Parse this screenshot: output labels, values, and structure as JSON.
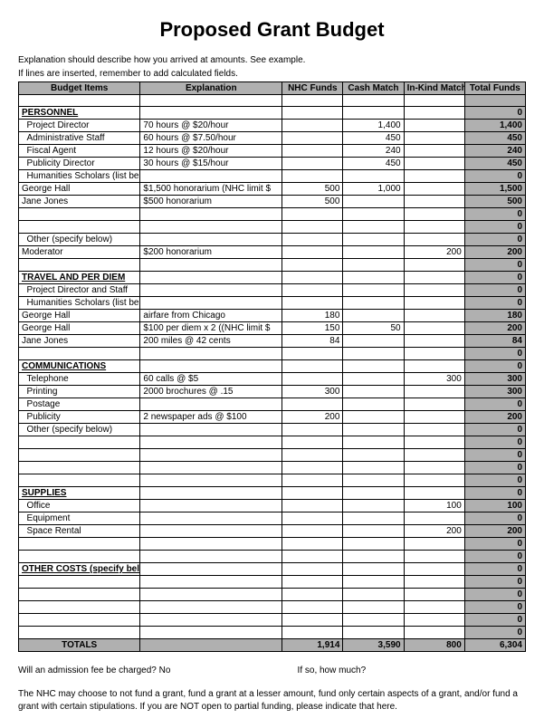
{
  "title": "Proposed Grant Budget",
  "intro_line1": "Explanation should describe how you arrived at amounts.  See example.",
  "intro_line2": "If lines are inserted, remember to add calculated fields.",
  "headers": {
    "item": "Budget Items",
    "expl": "Explanation",
    "nhc": "NHC Funds",
    "cash": "Cash Match",
    "inkind": "In-Kind Match",
    "total": "Total Funds"
  },
  "rows": [
    {
      "item": "",
      "expl": "",
      "nhc": "",
      "cash": "",
      "inkind": "",
      "total": ""
    },
    {
      "section": true,
      "item": "PERSONNEL",
      "expl": "",
      "nhc": "",
      "cash": "",
      "inkind": "",
      "total": "0"
    },
    {
      "item": "  Project Director",
      "expl": "70 hours @ $20/hour",
      "nhc": "",
      "cash": "1,400",
      "inkind": "",
      "total": "1,400"
    },
    {
      "item": "  Administrative Staff",
      "expl": "60 hours @ $7.50/hour",
      "nhc": "",
      "cash": "450",
      "inkind": "",
      "total": "450"
    },
    {
      "item": "  Fiscal Agent",
      "expl": "12 hours @ $20/hour",
      "nhc": "",
      "cash": "240",
      "inkind": "",
      "total": "240"
    },
    {
      "item": "  Publicity Director",
      "expl": "30 hours @ $15/hour",
      "nhc": "",
      "cash": "450",
      "inkind": "",
      "total": "450"
    },
    {
      "item": "  Humanities Scholars (list below)",
      "expl": "",
      "nhc": "",
      "cash": "",
      "inkind": "",
      "total": "0"
    },
    {
      "item": "George Hall",
      "expl": "$1,500 honorarium (NHC limit $",
      "nhc": "500",
      "cash": "1,000",
      "inkind": "",
      "total": "1,500"
    },
    {
      "item": "Jane Jones",
      "expl": "$500 honorarium",
      "nhc": "500",
      "cash": "",
      "inkind": "",
      "total": "500"
    },
    {
      "item": "",
      "expl": "",
      "nhc": "",
      "cash": "",
      "inkind": "",
      "total": "0"
    },
    {
      "item": "",
      "expl": "",
      "nhc": "",
      "cash": "",
      "inkind": "",
      "total": "0"
    },
    {
      "item": "  Other (specify below)",
      "expl": "",
      "nhc": "",
      "cash": "",
      "inkind": "",
      "total": "0"
    },
    {
      "item": "Moderator",
      "expl": "$200 honorarium",
      "nhc": "",
      "cash": "",
      "inkind": "200",
      "total": "200"
    },
    {
      "item": "",
      "expl": "",
      "nhc": "",
      "cash": "",
      "inkind": "",
      "total": "0"
    },
    {
      "section": true,
      "item": "TRAVEL AND PER DIEM",
      "expl": "",
      "nhc": "",
      "cash": "",
      "inkind": "",
      "total": "0"
    },
    {
      "item": "  Project Director and Staff",
      "expl": "",
      "nhc": "",
      "cash": "",
      "inkind": "",
      "total": "0"
    },
    {
      "item": "  Humanities Scholars (list below)",
      "expl": "",
      "nhc": "",
      "cash": "",
      "inkind": "",
      "total": "0"
    },
    {
      "item": "George Hall",
      "expl": "airfare from Chicago",
      "nhc": "180",
      "cash": "",
      "inkind": "",
      "total": "180"
    },
    {
      "item": "George Hall",
      "expl": "$100 per diem x 2 ((NHC limit $",
      "nhc": "150",
      "cash": "50",
      "inkind": "",
      "total": "200"
    },
    {
      "item": "Jane Jones",
      "expl": "200 miles @ 42 cents",
      "nhc": "84",
      "cash": "",
      "inkind": "",
      "total": "84"
    },
    {
      "item": "",
      "expl": "",
      "nhc": "",
      "cash": "",
      "inkind": "",
      "total": "0"
    },
    {
      "section": true,
      "item": "COMMUNICATIONS",
      "expl": "",
      "nhc": "",
      "cash": "",
      "inkind": "",
      "total": "0"
    },
    {
      "item": "  Telephone",
      "expl": "60 calls @ $5",
      "nhc": "",
      "cash": "",
      "inkind": "300",
      "total": "300"
    },
    {
      "item": "  Printing",
      "expl": "2000 brochures @ .15",
      "nhc": "300",
      "cash": "",
      "inkind": "",
      "total": "300"
    },
    {
      "item": "  Postage",
      "expl": "",
      "nhc": "",
      "cash": "",
      "inkind": "",
      "total": "0"
    },
    {
      "item": "  Publicity",
      "expl": "2 newspaper ads @ $100",
      "nhc": "200",
      "cash": "",
      "inkind": "",
      "total": "200"
    },
    {
      "item": "  Other (specify below)",
      "expl": "",
      "nhc": "",
      "cash": "",
      "inkind": "",
      "total": "0"
    },
    {
      "item": "",
      "expl": "",
      "nhc": "",
      "cash": "",
      "inkind": "",
      "total": "0"
    },
    {
      "item": "",
      "expl": "",
      "nhc": "",
      "cash": "",
      "inkind": "",
      "total": "0"
    },
    {
      "item": "",
      "expl": "",
      "nhc": "",
      "cash": "",
      "inkind": "",
      "total": "0"
    },
    {
      "item": "",
      "expl": "",
      "nhc": "",
      "cash": "",
      "inkind": "",
      "total": "0"
    },
    {
      "section": true,
      "item": "SUPPLIES",
      "expl": "",
      "nhc": "",
      "cash": "",
      "inkind": "",
      "total": "0"
    },
    {
      "item": "  Office",
      "expl": "",
      "nhc": "",
      "cash": "",
      "inkind": "100",
      "total": "100"
    },
    {
      "item": "  Equipment",
      "expl": "",
      "nhc": "",
      "cash": "",
      "inkind": "",
      "total": "0"
    },
    {
      "item": "  Space Rental",
      "expl": "",
      "nhc": "",
      "cash": "",
      "inkind": "200",
      "total": "200"
    },
    {
      "item": "",
      "expl": "",
      "nhc": "",
      "cash": "",
      "inkind": "",
      "total": "0"
    },
    {
      "item": "",
      "expl": "",
      "nhc": "",
      "cash": "",
      "inkind": "",
      "total": "0"
    },
    {
      "section": true,
      "item": "OTHER COSTS (specify below)",
      "expl": "",
      "nhc": "",
      "cash": "",
      "inkind": "",
      "total": "0"
    },
    {
      "item": "",
      "expl": "",
      "nhc": "",
      "cash": "",
      "inkind": "",
      "total": "0"
    },
    {
      "item": "",
      "expl": "",
      "nhc": "",
      "cash": "",
      "inkind": "",
      "total": "0"
    },
    {
      "item": "",
      "expl": "",
      "nhc": "",
      "cash": "",
      "inkind": "",
      "total": "0"
    },
    {
      "item": "",
      "expl": "",
      "nhc": "",
      "cash": "",
      "inkind": "",
      "total": "0"
    },
    {
      "item": "",
      "expl": "",
      "nhc": "",
      "cash": "",
      "inkind": "",
      "total": "0"
    }
  ],
  "totals": {
    "label": "TOTALS",
    "nhc": "1,914",
    "cash": "3,590",
    "inkind": "800",
    "total": "6,304"
  },
  "footer": {
    "q1": "Will an admission fee be charged?   No",
    "q2": "If so, how much?",
    "note": "The NHC may choose to not fund a grant, fund a grant at a lesser amount, fund only certain aspects of a grant, and/or fund a grant with certain stipulations.  If you are NOT open to partial funding, please indicate that here."
  },
  "style": {
    "header_bg": "#b0b0b0",
    "border_color": "#000000",
    "font_family": "Arial",
    "title_fontsize": 22,
    "body_fontsize": 10
  }
}
